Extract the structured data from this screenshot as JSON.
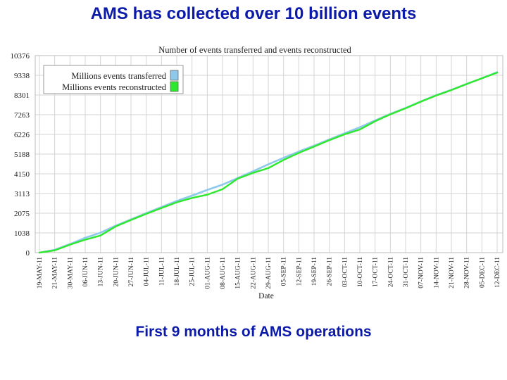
{
  "slide": {
    "title": "AMS has collected over 10 billion events",
    "caption": "First 9 months of AMS operations"
  },
  "colors": {
    "title_text": "#0b1aa8",
    "transferred": "#8ec8ea",
    "reconstructed": "#2ee82e",
    "grid": "#d4d4d4"
  },
  "chart_data": {
    "type": "line",
    "title": "Number of  events transferred and events reconstructed",
    "xlabel": "Date",
    "ylabel": "",
    "ylim": [
      0,
      10376
    ],
    "y_ticks": [
      0,
      1038,
      2075,
      3113,
      4150,
      5188,
      6226,
      7263,
      8301,
      9338,
      10376
    ],
    "x_ticks": [
      "19-MAY-11",
      "21-MAY-11",
      "30-MAY-11",
      "06-JUN-11",
      "13-JUN-11",
      "20-JUN-11",
      "27-JUN-11",
      "04-JUL-11",
      "11-JUL-11",
      "18-JUL-11",
      "25-JUL-11",
      "01-AUG-11",
      "08-AUG-11",
      "15-AUG-11",
      "22-AUG-11",
      "29-AUG-11",
      "05-SEP-11",
      "12-SEP-11",
      "19-SEP-11",
      "26-SEP-11",
      "03-OCT-11",
      "10-OCT-11",
      "17-OCT-11",
      "24-OCT-11",
      "31-OCT-11",
      "07-NOV-11",
      "14-NOV-11",
      "21-NOV-11",
      "28-NOV-11",
      "05-DEC-11",
      "12-DEC-11"
    ],
    "grid": true,
    "legend_position": "top-left",
    "series": [
      {
        "name": "Millions events transferred",
        "color": "#8ec8ea",
        "points": [
          [
            "19-MAY-11",
            0
          ],
          [
            "21-MAY-11",
            150
          ],
          [
            "30-MAY-11",
            450
          ],
          [
            "06-JUN-11",
            780
          ],
          [
            "13-JUN-11",
            1050
          ],
          [
            "20-JUN-11",
            1420
          ],
          [
            "27-JUN-11",
            1750
          ],
          [
            "04-JUL-11",
            2080
          ],
          [
            "11-JUL-11",
            2400
          ],
          [
            "18-JUL-11",
            2720
          ],
          [
            "25-JUL-11",
            3000
          ],
          [
            "01-AUG-11",
            3300
          ],
          [
            "08-AUG-11",
            3580
          ],
          [
            "15-AUG-11",
            3930
          ],
          [
            "22-AUG-11",
            4280
          ],
          [
            "29-AUG-11",
            4650
          ],
          [
            "05-SEP-11",
            4990
          ],
          [
            "12-SEP-11",
            5320
          ],
          [
            "19-SEP-11",
            5630
          ],
          [
            "26-SEP-11",
            5960
          ],
          [
            "03-OCT-11",
            6280
          ],
          [
            "10-OCT-11",
            6600
          ],
          [
            "17-OCT-11",
            6960
          ],
          [
            "24-OCT-11",
            7300
          ],
          [
            "31-OCT-11",
            7620
          ],
          [
            "07-NOV-11",
            7960
          ],
          [
            "14-NOV-11",
            8290
          ],
          [
            "21-NOV-11",
            8570
          ],
          [
            "28-NOV-11",
            8880
          ],
          [
            "05-DEC-11",
            9180
          ],
          [
            "12-DEC-11",
            9500
          ]
        ]
      },
      {
        "name": "Millions events reconstructed",
        "color": "#2ee82e",
        "points": [
          [
            "19-MAY-11",
            0
          ],
          [
            "21-MAY-11",
            120
          ],
          [
            "30-MAY-11",
            420
          ],
          [
            "06-JUN-11",
            680
          ],
          [
            "13-JUN-11",
            900
          ],
          [
            "20-JUN-11",
            1380
          ],
          [
            "27-JUN-11",
            1720
          ],
          [
            "04-JUL-11",
            2040
          ],
          [
            "11-JUL-11",
            2350
          ],
          [
            "18-JUL-11",
            2650
          ],
          [
            "25-JUL-11",
            2880
          ],
          [
            "01-AUG-11",
            3050
          ],
          [
            "08-AUG-11",
            3340
          ],
          [
            "15-AUG-11",
            3900
          ],
          [
            "22-AUG-11",
            4200
          ],
          [
            "29-AUG-11",
            4450
          ],
          [
            "05-SEP-11",
            4880
          ],
          [
            "12-SEP-11",
            5250
          ],
          [
            "19-SEP-11",
            5580
          ],
          [
            "26-SEP-11",
            5920
          ],
          [
            "03-OCT-11",
            6230
          ],
          [
            "10-OCT-11",
            6480
          ],
          [
            "17-OCT-11",
            6920
          ],
          [
            "24-OCT-11",
            7280
          ],
          [
            "31-OCT-11",
            7600
          ],
          [
            "07-NOV-11",
            7950
          ],
          [
            "14-NOV-11",
            8270
          ],
          [
            "21-NOV-11",
            8560
          ],
          [
            "28-NOV-11",
            8880
          ],
          [
            "05-DEC-11",
            9180
          ],
          [
            "12-DEC-11",
            9480
          ]
        ]
      }
    ]
  }
}
